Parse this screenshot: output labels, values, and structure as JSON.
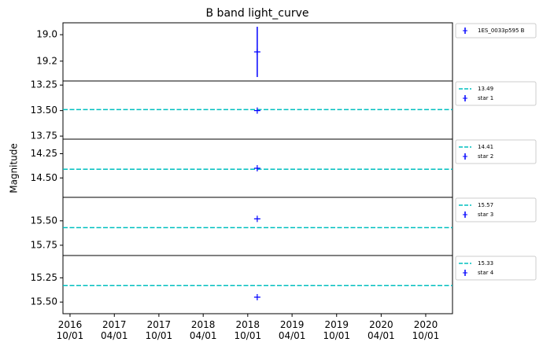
{
  "chart_data": [
    {
      "type": "errorbar",
      "title": "B band light_curve",
      "x": [
        "2018-11-09"
      ],
      "xlim": [
        "2016-09-02",
        "2021-01-19"
      ],
      "series": [
        {
          "name": "1ES_0033p595 B",
          "color": "#0000ff",
          "values": [
            19.13
          ],
          "errors": [
            0.19
          ]
        }
      ],
      "hlines": [],
      "ylim": [
        19.35,
        18.91
      ],
      "yticks": [
        {
          "value": 19,
          "label": "19.0"
        },
        19.2
      ]
    },
    {
      "type": "errorbar",
      "x": [
        "2018-11-09"
      ],
      "xlim": [
        "2016-09-02",
        "2021-01-19"
      ],
      "series": [
        {
          "name": "star 1",
          "color": "#0000ff",
          "values": [
            13.5
          ]
        }
      ],
      "hlines": [
        {
          "name": "13.49",
          "value": 13.49,
          "color": "#00bfbf"
        }
      ],
      "ylim": [
        13.78,
        13.21
      ],
      "yticks": [
        13.25,
        {
          "value": 13.5,
          "label": "13.50"
        },
        13.75
      ]
    },
    {
      "type": "errorbar",
      "y_label": "Magnitude",
      "x": [
        "2018-11-09"
      ],
      "xlim": [
        "2016-09-02",
        "2021-01-19"
      ],
      "series": [
        {
          "name": "star 2",
          "color": "#0000ff",
          "values": [
            14.4
          ]
        }
      ],
      "hlines": [
        {
          "name": "14.41",
          "value": 14.41,
          "color": "#00bfbf"
        }
      ],
      "ylim": [
        14.7,
        14.1
      ],
      "yticks": [
        14.25,
        {
          "value": 14.5,
          "label": "14.50"
        }
      ]
    },
    {
      "type": "errorbar",
      "x": [
        "2018-11-09"
      ],
      "xlim": [
        "2016-09-02",
        "2021-01-19"
      ],
      "series": [
        {
          "name": "star 3",
          "color": "#0000ff",
          "values": [
            15.48
          ]
        }
      ],
      "hlines": [
        {
          "name": "15.57",
          "value": 15.57,
          "color": "#00bfbf"
        }
      ],
      "ylim": [
        15.855,
        15.26
      ],
      "yticks": [
        {
          "value": 15.5,
          "label": "15.50"
        },
        15.75
      ]
    },
    {
      "type": "errorbar",
      "x": [
        "2018-11-09"
      ],
      "xlim": [
        "2016-09-02",
        "2021-01-19"
      ],
      "series": [
        {
          "name": "star 4",
          "color": "#0000ff",
          "values": [
            15.45
          ]
        }
      ],
      "hlines": [
        {
          "name": "15.33",
          "value": 15.33,
          "color": "#00bfbf"
        }
      ],
      "ylim": [
        15.62,
        15.02
      ],
      "yticks": [
        15.25,
        {
          "value": 15.5,
          "label": "15.50"
        }
      ],
      "xticks": [
        {
          "value": "2016-10-01",
          "label": "2016\n10/01"
        },
        {
          "value": "2017-04-01",
          "label": "2017\n04/01"
        },
        {
          "value": "2017-10-01",
          "label": "2017\n10/01"
        },
        {
          "value": "2018-04-01",
          "label": "2018\n04/01"
        },
        {
          "value": "2018-10-01",
          "label": "2018\n10/01"
        },
        {
          "value": "2019-04-01",
          "label": "2019\n04/01"
        },
        {
          "value": "2019-10-01",
          "label": "2019\n10/01"
        },
        {
          "value": "2020-04-01",
          "label": "2020\n04/01"
        },
        {
          "value": "2020-10-01",
          "label": "2020\n10/01"
        }
      ]
    }
  ]
}
